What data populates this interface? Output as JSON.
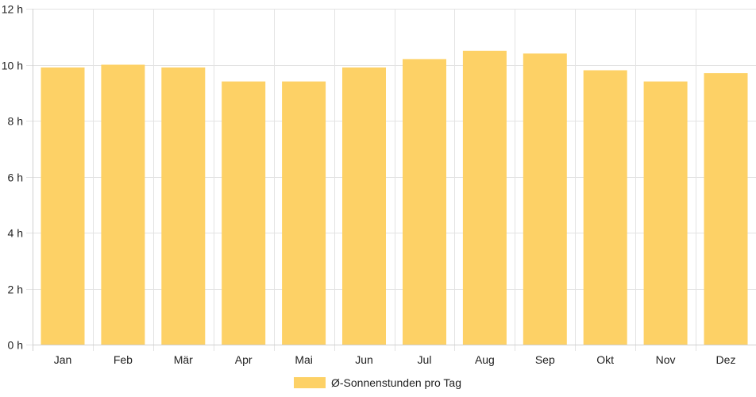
{
  "chart_data": {
    "type": "bar",
    "categories": [
      "Jan",
      "Feb",
      "Mär",
      "Apr",
      "Mai",
      "Jun",
      "Jul",
      "Aug",
      "Sep",
      "Okt",
      "Nov",
      "Dez"
    ],
    "series": [
      {
        "name": "Ø-Sonnenstunden pro Tag",
        "values": [
          9.9,
          10.0,
          9.9,
          9.4,
          9.4,
          9.9,
          10.2,
          10.5,
          10.4,
          9.8,
          9.4,
          9.7
        ],
        "color": "#fdd166"
      }
    ],
    "ylim": [
      0,
      12
    ],
    "yticks": [
      0,
      2,
      4,
      6,
      8,
      10,
      12
    ],
    "ytick_suffix": " h",
    "grid": true,
    "legend_position": "bottom"
  }
}
